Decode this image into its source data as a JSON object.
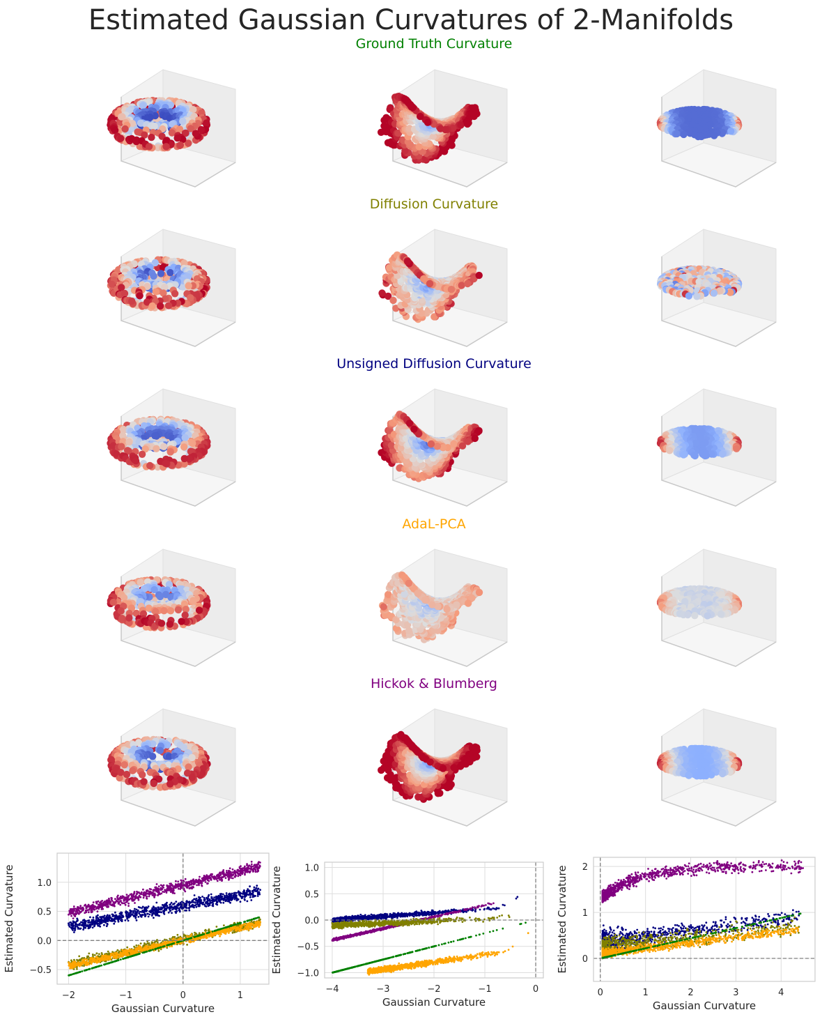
{
  "figure": {
    "title": "Estimated Gaussian Curvatures of 2-Manifolds",
    "row_titles": [
      {
        "text": "Ground Truth Curvature",
        "color": "#008000"
      },
      {
        "text": "Diffusion Curvature",
        "color": "#808000"
      },
      {
        "text": "Unsigned Diffusion Curvature",
        "color": "#000080"
      },
      {
        "text": "AdaL-PCA",
        "color": "#FFA500"
      },
      {
        "text": "Hickok & Blumberg",
        "color": "#800080"
      }
    ],
    "manifolds": [
      "torus",
      "saddle",
      "ellipsoid"
    ],
    "colormap": "coolwarm"
  },
  "chart_data": [
    {
      "type": "scatter",
      "xlabel": "Gaussian Curvature",
      "ylabel": "Estimated Curvature",
      "xlim": [
        -2.2,
        1.5
      ],
      "ylim": [
        -0.75,
        1.5
      ],
      "xticks": [
        -2,
        -1,
        0,
        1
      ],
      "xtick_labels": [
        "−2",
        "−1",
        "0",
        "1"
      ],
      "yticks": [
        -0.5,
        0.0,
        0.5,
        1.0
      ],
      "ytick_labels": [
        "−0.5",
        "0.0",
        "0.5",
        "1.0"
      ],
      "reference_lines": {
        "x": 0,
        "y": 0
      },
      "grid": true,
      "series": [
        {
          "color": "#800080",
          "x_range": [
            -2,
            1.35
          ],
          "slope": 0.24,
          "intercept": 0.95,
          "noise": 0.08,
          "n": 900
        },
        {
          "color": "#000080",
          "x_range": [
            -2,
            1.35
          ],
          "slope": 0.18,
          "intercept": 0.6,
          "noise": 0.09,
          "n": 900
        },
        {
          "color": "#808000",
          "x_range": [
            -2,
            1.35
          ],
          "slope": 0.22,
          "intercept": 0.02,
          "noise": 0.08,
          "n": 700
        },
        {
          "color": "#FFA500",
          "x_range": [
            -2,
            1.35
          ],
          "slope": 0.22,
          "intercept": 0.0,
          "noise": 0.05,
          "n": 900
        },
        {
          "color": "#008000",
          "x_range": [
            -2,
            1.35
          ],
          "slope": 0.3,
          "intercept": 0.0,
          "noise": 0.0,
          "n": 300
        }
      ]
    },
    {
      "type": "scatter",
      "xlabel": "Gaussian Curvature",
      "ylabel": "Estimated Curvature",
      "xlim": [
        -4.15,
        0.15
      ],
      "ylim": [
        -1.1,
        1.1
      ],
      "xticks": [
        -4,
        -3,
        -2,
        -1,
        0
      ],
      "xtick_labels": [
        "−4",
        "−3",
        "−2",
        "−1",
        "0"
      ],
      "yticks": [
        -1.0,
        -0.5,
        0.0,
        0.5,
        1.0
      ],
      "ytick_labels": [
        "−1.0",
        "−0.5",
        "0.0",
        "0.5",
        "1.0"
      ],
      "reference_lines": {
        "x": 0,
        "y": 0
      },
      "grid": true,
      "series": [
        {
          "color": "#000080",
          "x_range": [
            -4,
            -0.1
          ],
          "noise": 0.04,
          "n": 900
        },
        {
          "color": "#800080",
          "x_range": [
            -4,
            -0.1
          ],
          "noise": 0.02,
          "n": 900
        },
        {
          "color": "#808000",
          "x_range": [
            -4,
            -0.1
          ],
          "noise": 0.05,
          "n": 800
        },
        {
          "color": "#008000",
          "x_range": [
            -4,
            0
          ],
          "slope": 0.25,
          "intercept": 0.0,
          "noise": 0.0,
          "n": 300
        },
        {
          "color": "#FFA500",
          "x_range": [
            -3.3,
            -0.1
          ],
          "noise": 0.05,
          "n": 900
        }
      ]
    },
    {
      "type": "scatter",
      "xlabel": "Gaussian Curvature",
      "ylabel": "Estimated Curvature",
      "xlim": [
        -0.15,
        4.75
      ],
      "ylim": [
        -0.5,
        2.2
      ],
      "xticks": [
        0,
        1,
        2,
        3,
        4
      ],
      "xtick_labels": [
        "0",
        "1",
        "2",
        "3",
        "4"
      ],
      "yticks": [
        0,
        1,
        2
      ],
      "ytick_labels": [
        "0",
        "1",
        "2"
      ],
      "reference_lines": {
        "x": 0,
        "y": 0
      },
      "grid": true,
      "series": [
        {
          "color": "#800080",
          "x_range": [
            0.05,
            4.5
          ],
          "noise": 0.12,
          "n": 900
        },
        {
          "color": "#000080",
          "x_range": [
            0.05,
            4.4
          ],
          "noise": 0.2,
          "n": 800
        },
        {
          "color": "#808000",
          "x_range": [
            0.05,
            4.4
          ],
          "noise": 0.18,
          "n": 700
        },
        {
          "color": "#FFA500",
          "x_range": [
            0.05,
            4.4
          ],
          "noise": 0.08,
          "n": 900
        },
        {
          "color": "#008000",
          "x_range": [
            0.05,
            4.5
          ],
          "slope": 0.22,
          "intercept": 0.0,
          "noise": 0.0,
          "n": 250
        }
      ]
    }
  ]
}
